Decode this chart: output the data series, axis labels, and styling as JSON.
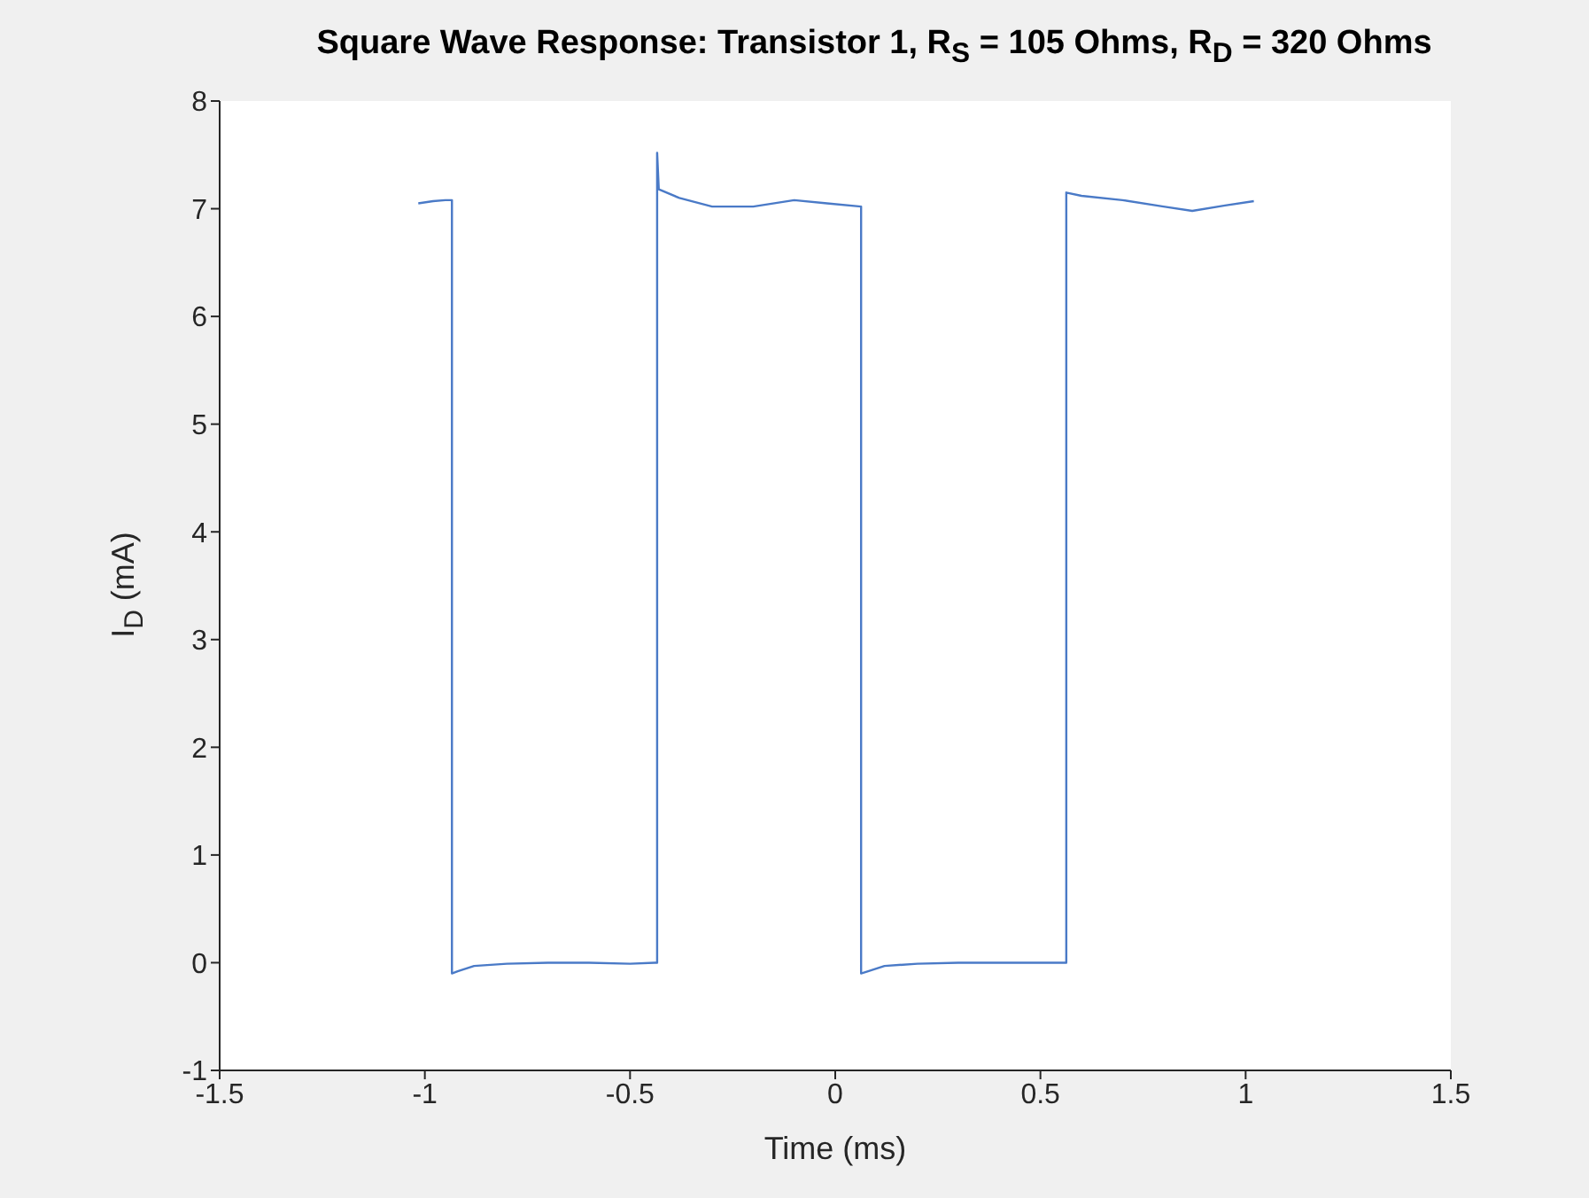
{
  "chart_data": {
    "type": "line",
    "title": "Square Wave Response: Transistor 1, R$_{S}$ = 105 Ohms, R$_{D}$ = 320 Ohms",
    "xlabel": "Time (ms)",
    "ylabel": "I$_{D}$ (mA)",
    "x": [
      -1.016,
      -0.98,
      -0.95,
      -0.934,
      -0.934,
      -0.92,
      -0.88,
      -0.8,
      -0.7,
      -0.6,
      -0.5,
      -0.44,
      -0.434,
      -0.434,
      -0.43,
      -0.38,
      -0.3,
      -0.2,
      -0.1,
      -0.02,
      0.063,
      0.063,
      0.08,
      0.12,
      0.2,
      0.3,
      0.4,
      0.5,
      0.563,
      0.563,
      0.6,
      0.7,
      0.8,
      0.87,
      0.95,
      1.02
    ],
    "series": [
      {
        "color": "#4a7ac7",
        "values": [
          7.05,
          7.07,
          7.08,
          7.08,
          -0.1,
          -0.08,
          -0.03,
          -0.01,
          0.0,
          0.0,
          -0.01,
          0.0,
          0.0,
          7.52,
          7.18,
          7.1,
          7.02,
          7.02,
          7.08,
          7.05,
          7.02,
          -0.1,
          -0.08,
          -0.03,
          -0.01,
          0.0,
          0.0,
          0.0,
          0.0,
          7.15,
          7.12,
          7.08,
          7.02,
          6.98,
          7.03,
          7.07
        ]
      }
    ],
    "xlim": [
      -1.5,
      1.5
    ],
    "xticks": [
      -1.5,
      -1,
      -0.5,
      0,
      0.5,
      1,
      1.5
    ],
    "ylim": [
      -1,
      8
    ],
    "yticks": [
      -1,
      0,
      1,
      2,
      3,
      4,
      5,
      6,
      7,
      8
    ],
    "grid": false,
    "legend": false,
    "marker": "none",
    "line_style": "solid"
  }
}
